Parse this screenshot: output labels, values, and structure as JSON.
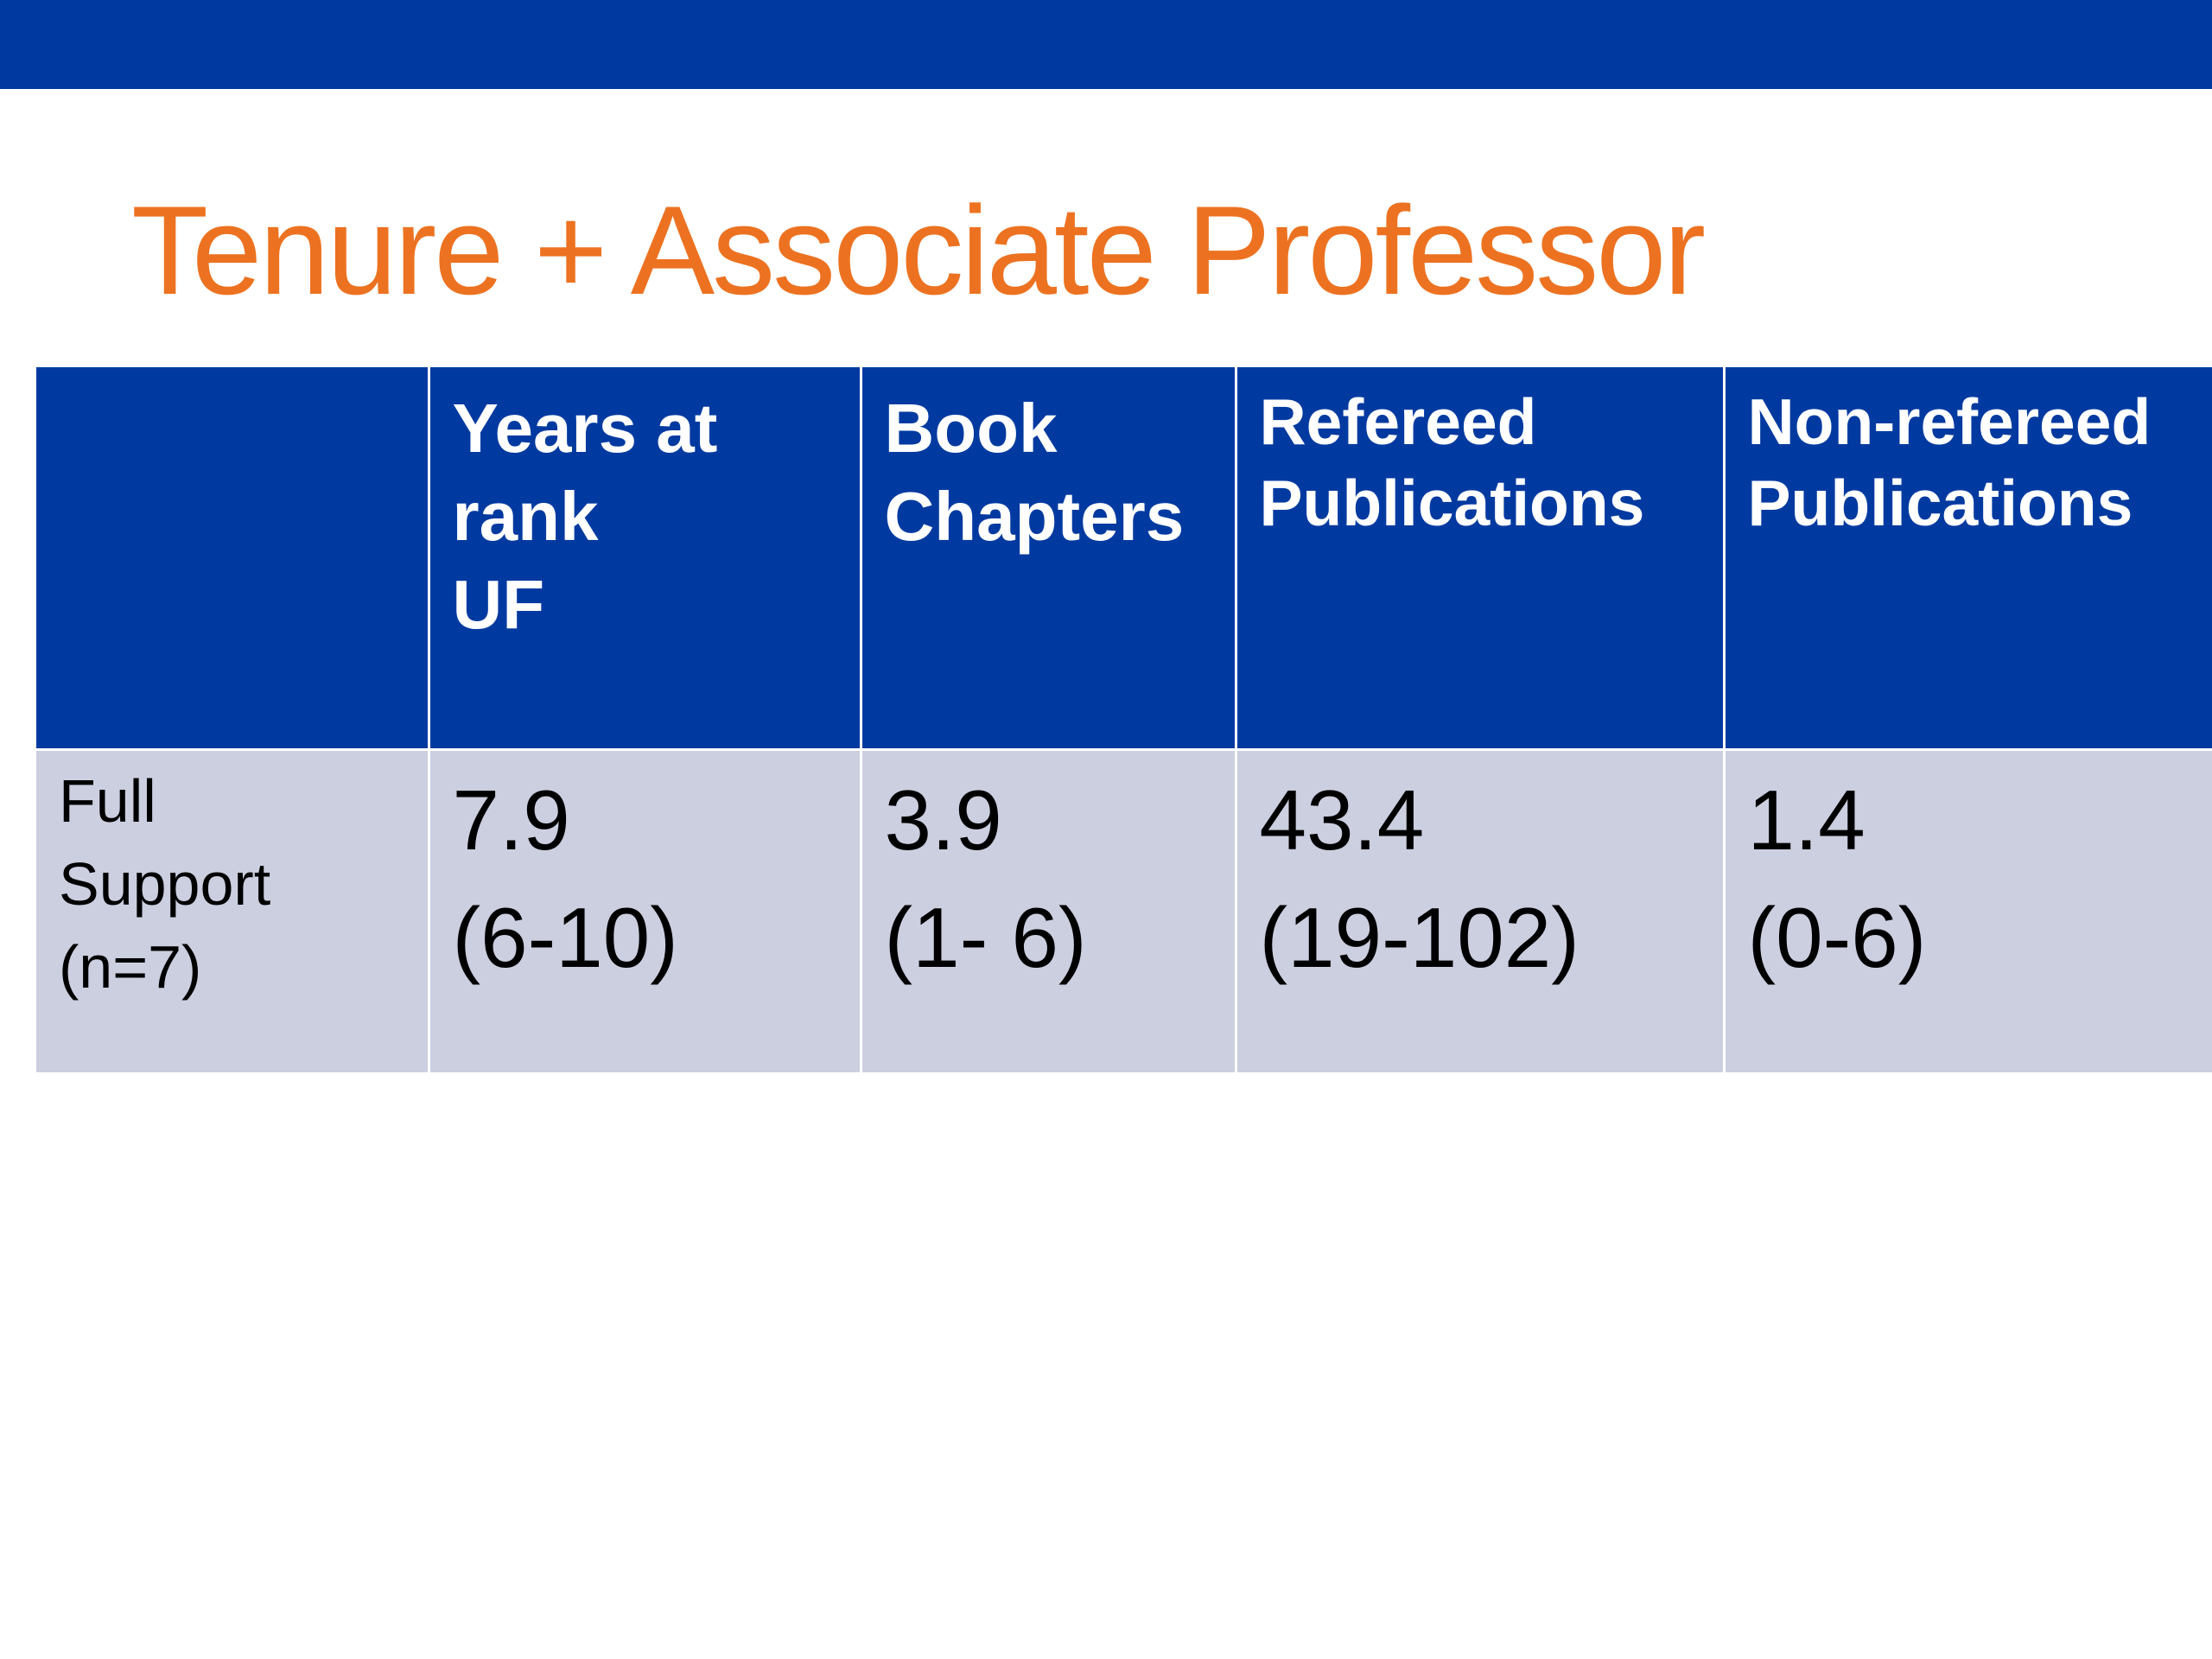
{
  "title": "Tenure + Associate Professor",
  "table": {
    "headers": [
      "",
      "Years at\nrank\n UF",
      "Book\nChapters",
      "Refereed\nPublications",
      "Non-refereed\nPublications"
    ],
    "rows": [
      {
        "label": "Full\nSupport\n(n=7)",
        "cells": [
          "7.9\n(6-10)",
          "3.9\n(1- 6)",
          "43.4\n(19-102)",
          "1.4\n(0-6)"
        ]
      }
    ]
  },
  "colors": {
    "bar": "#003aa0",
    "header_bg": "#003aa0",
    "row_bg": "#cbcfe0",
    "title": "#ec7221"
  }
}
